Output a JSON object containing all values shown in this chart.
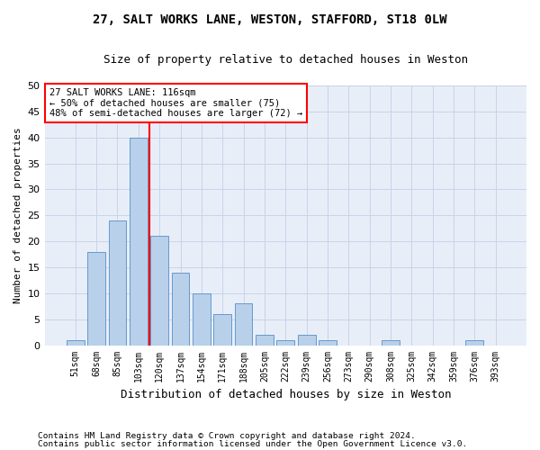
{
  "title_line1": "27, SALT WORKS LANE, WESTON, STAFFORD, ST18 0LW",
  "title_line2": "Size of property relative to detached houses in Weston",
  "xlabel": "Distribution of detached houses by size in Weston",
  "ylabel": "Number of detached properties",
  "bar_labels": [
    "51sqm",
    "68sqm",
    "85sqm",
    "103sqm",
    "120sqm",
    "137sqm",
    "154sqm",
    "171sqm",
    "188sqm",
    "205sqm",
    "222sqm",
    "239sqm",
    "256sqm",
    "273sqm",
    "290sqm",
    "308sqm",
    "325sqm",
    "342sqm",
    "359sqm",
    "376sqm",
    "393sqm"
  ],
  "bar_values": [
    1,
    18,
    24,
    40,
    21,
    14,
    10,
    6,
    8,
    2,
    1,
    2,
    1,
    0,
    0,
    1,
    0,
    0,
    0,
    1,
    0
  ],
  "bar_color": "#b8d0ea",
  "bar_edge_color": "#6699cc",
  "grid_color": "#c8d4e8",
  "background_color": "#e8eef8",
  "vline_color": "red",
  "vline_pos": 3.5,
  "annotation_line1": "27 SALT WORKS LANE: 116sqm",
  "annotation_line2": "← 50% of detached houses are smaller (75)",
  "annotation_line3": "48% of semi-detached houses are larger (72) →",
  "footnote1": "Contains HM Land Registry data © Crown copyright and database right 2024.",
  "footnote2": "Contains public sector information licensed under the Open Government Licence v3.0.",
  "ylim": [
    0,
    50
  ],
  "yticks": [
    0,
    5,
    10,
    15,
    20,
    25,
    30,
    35,
    40,
    45,
    50
  ]
}
